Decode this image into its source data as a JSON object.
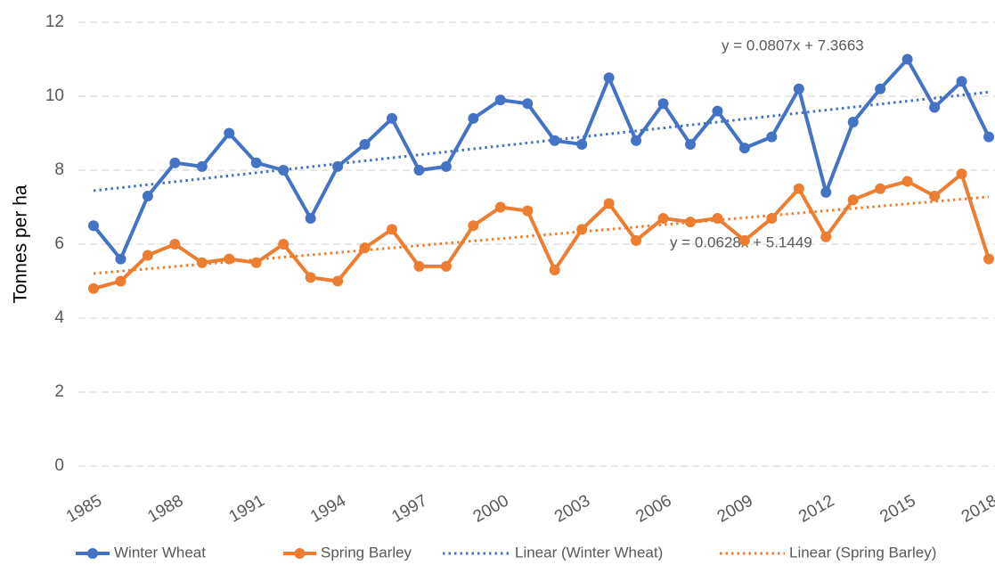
{
  "chart_data": {
    "type": "line",
    "y_label": "Tonnes per ha",
    "x": [
      1985,
      1986,
      1987,
      1988,
      1989,
      1990,
      1991,
      1992,
      1993,
      1994,
      1995,
      1996,
      1997,
      1998,
      1999,
      2000,
      2001,
      2002,
      2003,
      2004,
      2005,
      2006,
      2007,
      2008,
      2009,
      2010,
      2011,
      2012,
      2013,
      2014,
      2015,
      2016,
      2017,
      2018
    ],
    "xlim": [
      1985,
      2018
    ],
    "xticks": [
      1985,
      1988,
      1991,
      1994,
      1997,
      2000,
      2003,
      2006,
      2009,
      2012,
      2015,
      2018
    ],
    "ylim": [
      0,
      12
    ],
    "yticks": [
      0,
      2,
      4,
      6,
      8,
      10,
      12
    ],
    "grid": true,
    "legend": "bottom",
    "series": [
      {
        "name": "Winter Wheat",
        "color": "#4472c4",
        "values": [
          6.5,
          5.6,
          7.3,
          8.2,
          8.1,
          9.0,
          8.2,
          8.0,
          6.7,
          8.1,
          8.7,
          9.4,
          8.0,
          8.1,
          9.4,
          9.9,
          9.8,
          8.8,
          8.7,
          10.5,
          8.8,
          9.8,
          8.7,
          9.6,
          8.6,
          8.9,
          10.2,
          7.4,
          9.3,
          10.2,
          11.0,
          9.7,
          10.4,
          8.9
        ]
      },
      {
        "name": "Spring Barley",
        "color": "#ed7d31",
        "values": [
          4.8,
          5.0,
          5.7,
          6.0,
          5.5,
          5.6,
          5.5,
          6.0,
          5.1,
          5.0,
          5.9,
          6.4,
          5.4,
          5.4,
          6.5,
          7.0,
          6.9,
          5.3,
          6.4,
          7.1,
          6.1,
          6.7,
          6.6,
          6.7,
          6.1,
          6.7,
          7.5,
          6.2,
          7.2,
          7.5,
          7.7,
          7.3,
          7.9,
          5.6
        ]
      }
    ],
    "trendlines": [
      {
        "name": "Linear (Winter Wheat)",
        "color": "#4472c4",
        "slope": 0.0807,
        "intercept": 7.3663,
        "label": "y = 0.0807x + 7.3663"
      },
      {
        "name": "Linear (Spring Barley)",
        "color": "#ed7d31",
        "slope": 0.0628,
        "intercept": 5.1449,
        "label": "y = 0.0628x + 5.1449"
      }
    ]
  }
}
